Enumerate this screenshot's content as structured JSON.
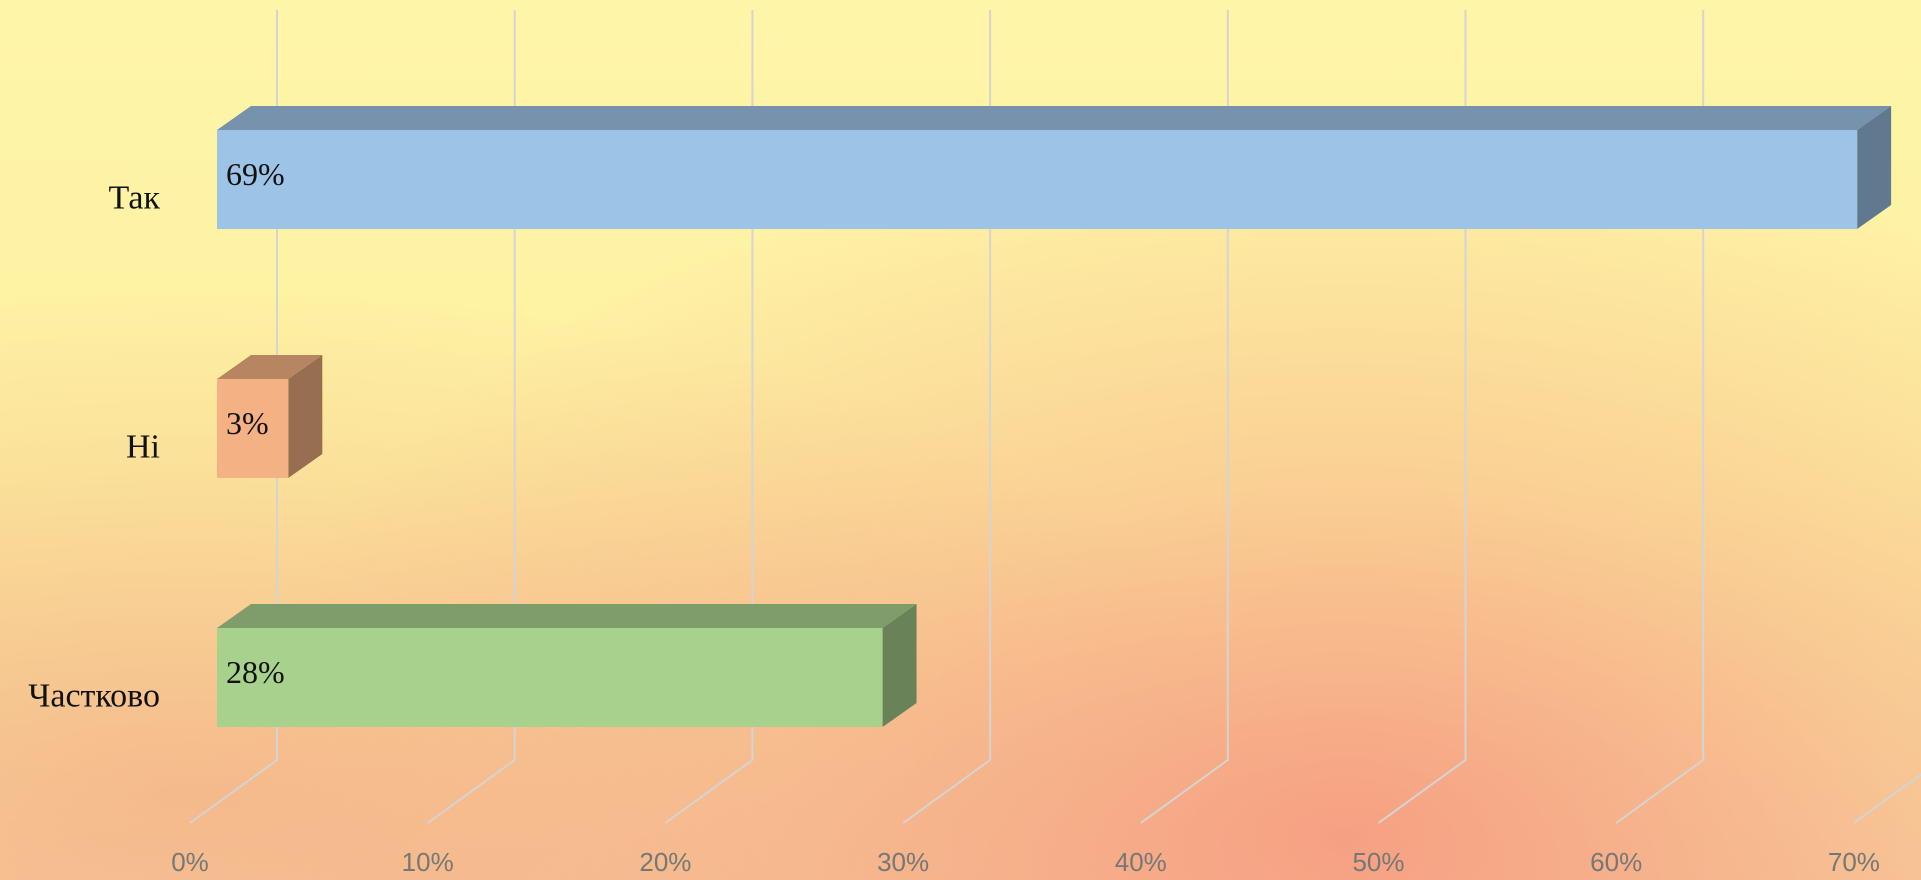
{
  "chart_data": {
    "type": "bar3d",
    "orientation": "horizontal",
    "categories": [
      "Так",
      "Ні",
      "Частково"
    ],
    "values": [
      69,
      3,
      28
    ],
    "value_labels": [
      "69%",
      "3%",
      "28%"
    ],
    "colors": [
      "#9dc3e6",
      "#f4b183",
      "#a9d18e"
    ],
    "xlim": [
      0,
      70
    ],
    "xticks": [
      {
        "value": 0,
        "label": "0%"
      },
      {
        "value": 10,
        "label": "10%"
      },
      {
        "value": 20,
        "label": "20%"
      },
      {
        "value": 30,
        "label": "30%"
      },
      {
        "value": 40,
        "label": "40%"
      },
      {
        "value": 50,
        "label": "50%"
      },
      {
        "value": 60,
        "label": "60%"
      },
      {
        "value": 70,
        "label": "70%"
      }
    ],
    "grid": true
  }
}
